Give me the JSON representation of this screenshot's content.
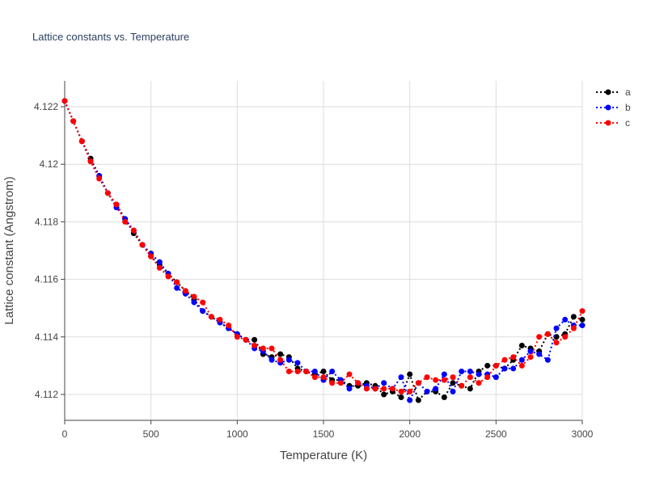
{
  "chart_data": {
    "type": "line",
    "title": "Lattice constants vs. Temperature",
    "xlabel": "Temperature (K)",
    "ylabel": "Lattice constant (Angstrom)",
    "xlim": [
      0,
      3000
    ],
    "ylim": [
      4.1111,
      4.1229
    ],
    "xticks": [
      0,
      500,
      1000,
      1500,
      2000,
      2500,
      3000
    ],
    "xtick_labels": [
      "0",
      "500",
      "1000",
      "1500",
      "2000",
      "2500",
      "3000"
    ],
    "yticks": [
      4.112,
      4.114,
      4.116,
      4.118,
      4.12,
      4.122
    ],
    "ytick_labels": [
      "4.112",
      "4.114",
      "4.116",
      "4.118",
      "4.12",
      "4.122"
    ],
    "grid": true,
    "legend_position": "top-right",
    "x": [
      0,
      50,
      100,
      150,
      200,
      250,
      300,
      350,
      400,
      450,
      500,
      550,
      600,
      650,
      700,
      750,
      800,
      850,
      900,
      950,
      1000,
      1050,
      1100,
      1150,
      1200,
      1250,
      1300,
      1350,
      1400,
      1450,
      1500,
      1550,
      1600,
      1650,
      1700,
      1750,
      1800,
      1850,
      1900,
      1950,
      2000,
      2050,
      2100,
      2150,
      2200,
      2250,
      2300,
      2350,
      2400,
      2450,
      2500,
      2550,
      2600,
      2650,
      2700,
      2750,
      2800,
      2850,
      2900,
      2950,
      3000
    ],
    "series": [
      {
        "name": "a",
        "color": "#000000",
        "values": [
          4.1222,
          4.1215,
          4.1208,
          4.1202,
          4.1196,
          4.119,
          4.1186,
          4.1181,
          4.1176,
          4.1172,
          4.1168,
          4.1165,
          4.1162,
          4.1159,
          4.1156,
          4.1153,
          4.1149,
          4.1147,
          4.1145,
          4.1143,
          4.1141,
          4.1139,
          4.1139,
          4.1134,
          4.1133,
          4.1134,
          4.1133,
          4.1129,
          4.1128,
          4.1127,
          4.1128,
          4.1125,
          4.1125,
          4.1123,
          4.1123,
          4.1124,
          4.1123,
          4.112,
          4.1121,
          4.1119,
          4.1127,
          4.1118,
          4.1121,
          4.1121,
          4.1119,
          4.1124,
          4.1123,
          4.1122,
          4.1128,
          4.113,
          4.113,
          4.1129,
          4.1132,
          4.1137,
          4.1136,
          4.1135,
          4.1141,
          4.114,
          4.1141,
          4.1147,
          4.1146
        ]
      },
      {
        "name": "b",
        "color": "#0000ff",
        "values": [
          4.1222,
          4.1215,
          4.1208,
          4.1201,
          4.1196,
          4.119,
          4.1185,
          4.1181,
          4.1177,
          4.1172,
          4.1169,
          4.1166,
          4.1162,
          4.1157,
          4.1155,
          4.1152,
          4.1149,
          4.1147,
          4.1145,
          4.1143,
          4.1141,
          4.1139,
          4.1136,
          4.1135,
          4.1132,
          4.1131,
          4.1132,
          4.1131,
          4.1128,
          4.1128,
          4.1125,
          4.1128,
          4.1125,
          4.1122,
          4.1124,
          4.1123,
          4.1122,
          4.1124,
          4.1122,
          4.1126,
          4.1118,
          4.1124,
          4.1121,
          4.1122,
          4.1127,
          4.1121,
          4.1128,
          4.1128,
          4.1127,
          4.1127,
          4.1126,
          4.1129,
          4.1129,
          4.1132,
          4.1135,
          4.1134,
          4.1132,
          4.1143,
          4.1146,
          4.1144,
          4.1144
        ]
      },
      {
        "name": "c",
        "color": "#ff0000",
        "values": [
          4.1222,
          4.1215,
          4.1208,
          4.1201,
          4.1195,
          4.119,
          4.1186,
          4.118,
          4.1177,
          4.1172,
          4.1168,
          4.1164,
          4.1161,
          4.1159,
          4.1156,
          4.1154,
          4.1152,
          4.1147,
          4.1146,
          4.1144,
          4.114,
          4.1139,
          4.1137,
          4.1136,
          4.1136,
          4.1132,
          4.1128,
          4.1128,
          4.1128,
          4.1126,
          4.1126,
          4.1124,
          4.1124,
          4.1127,
          4.1124,
          4.1122,
          4.1122,
          4.1122,
          4.1122,
          4.1121,
          4.1121,
          4.1124,
          4.1126,
          4.1125,
          4.1125,
          4.1126,
          4.1123,
          4.1126,
          4.1124,
          4.1126,
          4.113,
          4.1132,
          4.1133,
          4.113,
          4.1133,
          4.114,
          4.1141,
          4.1138,
          4.114,
          4.1143,
          4.1149
        ]
      }
    ]
  }
}
